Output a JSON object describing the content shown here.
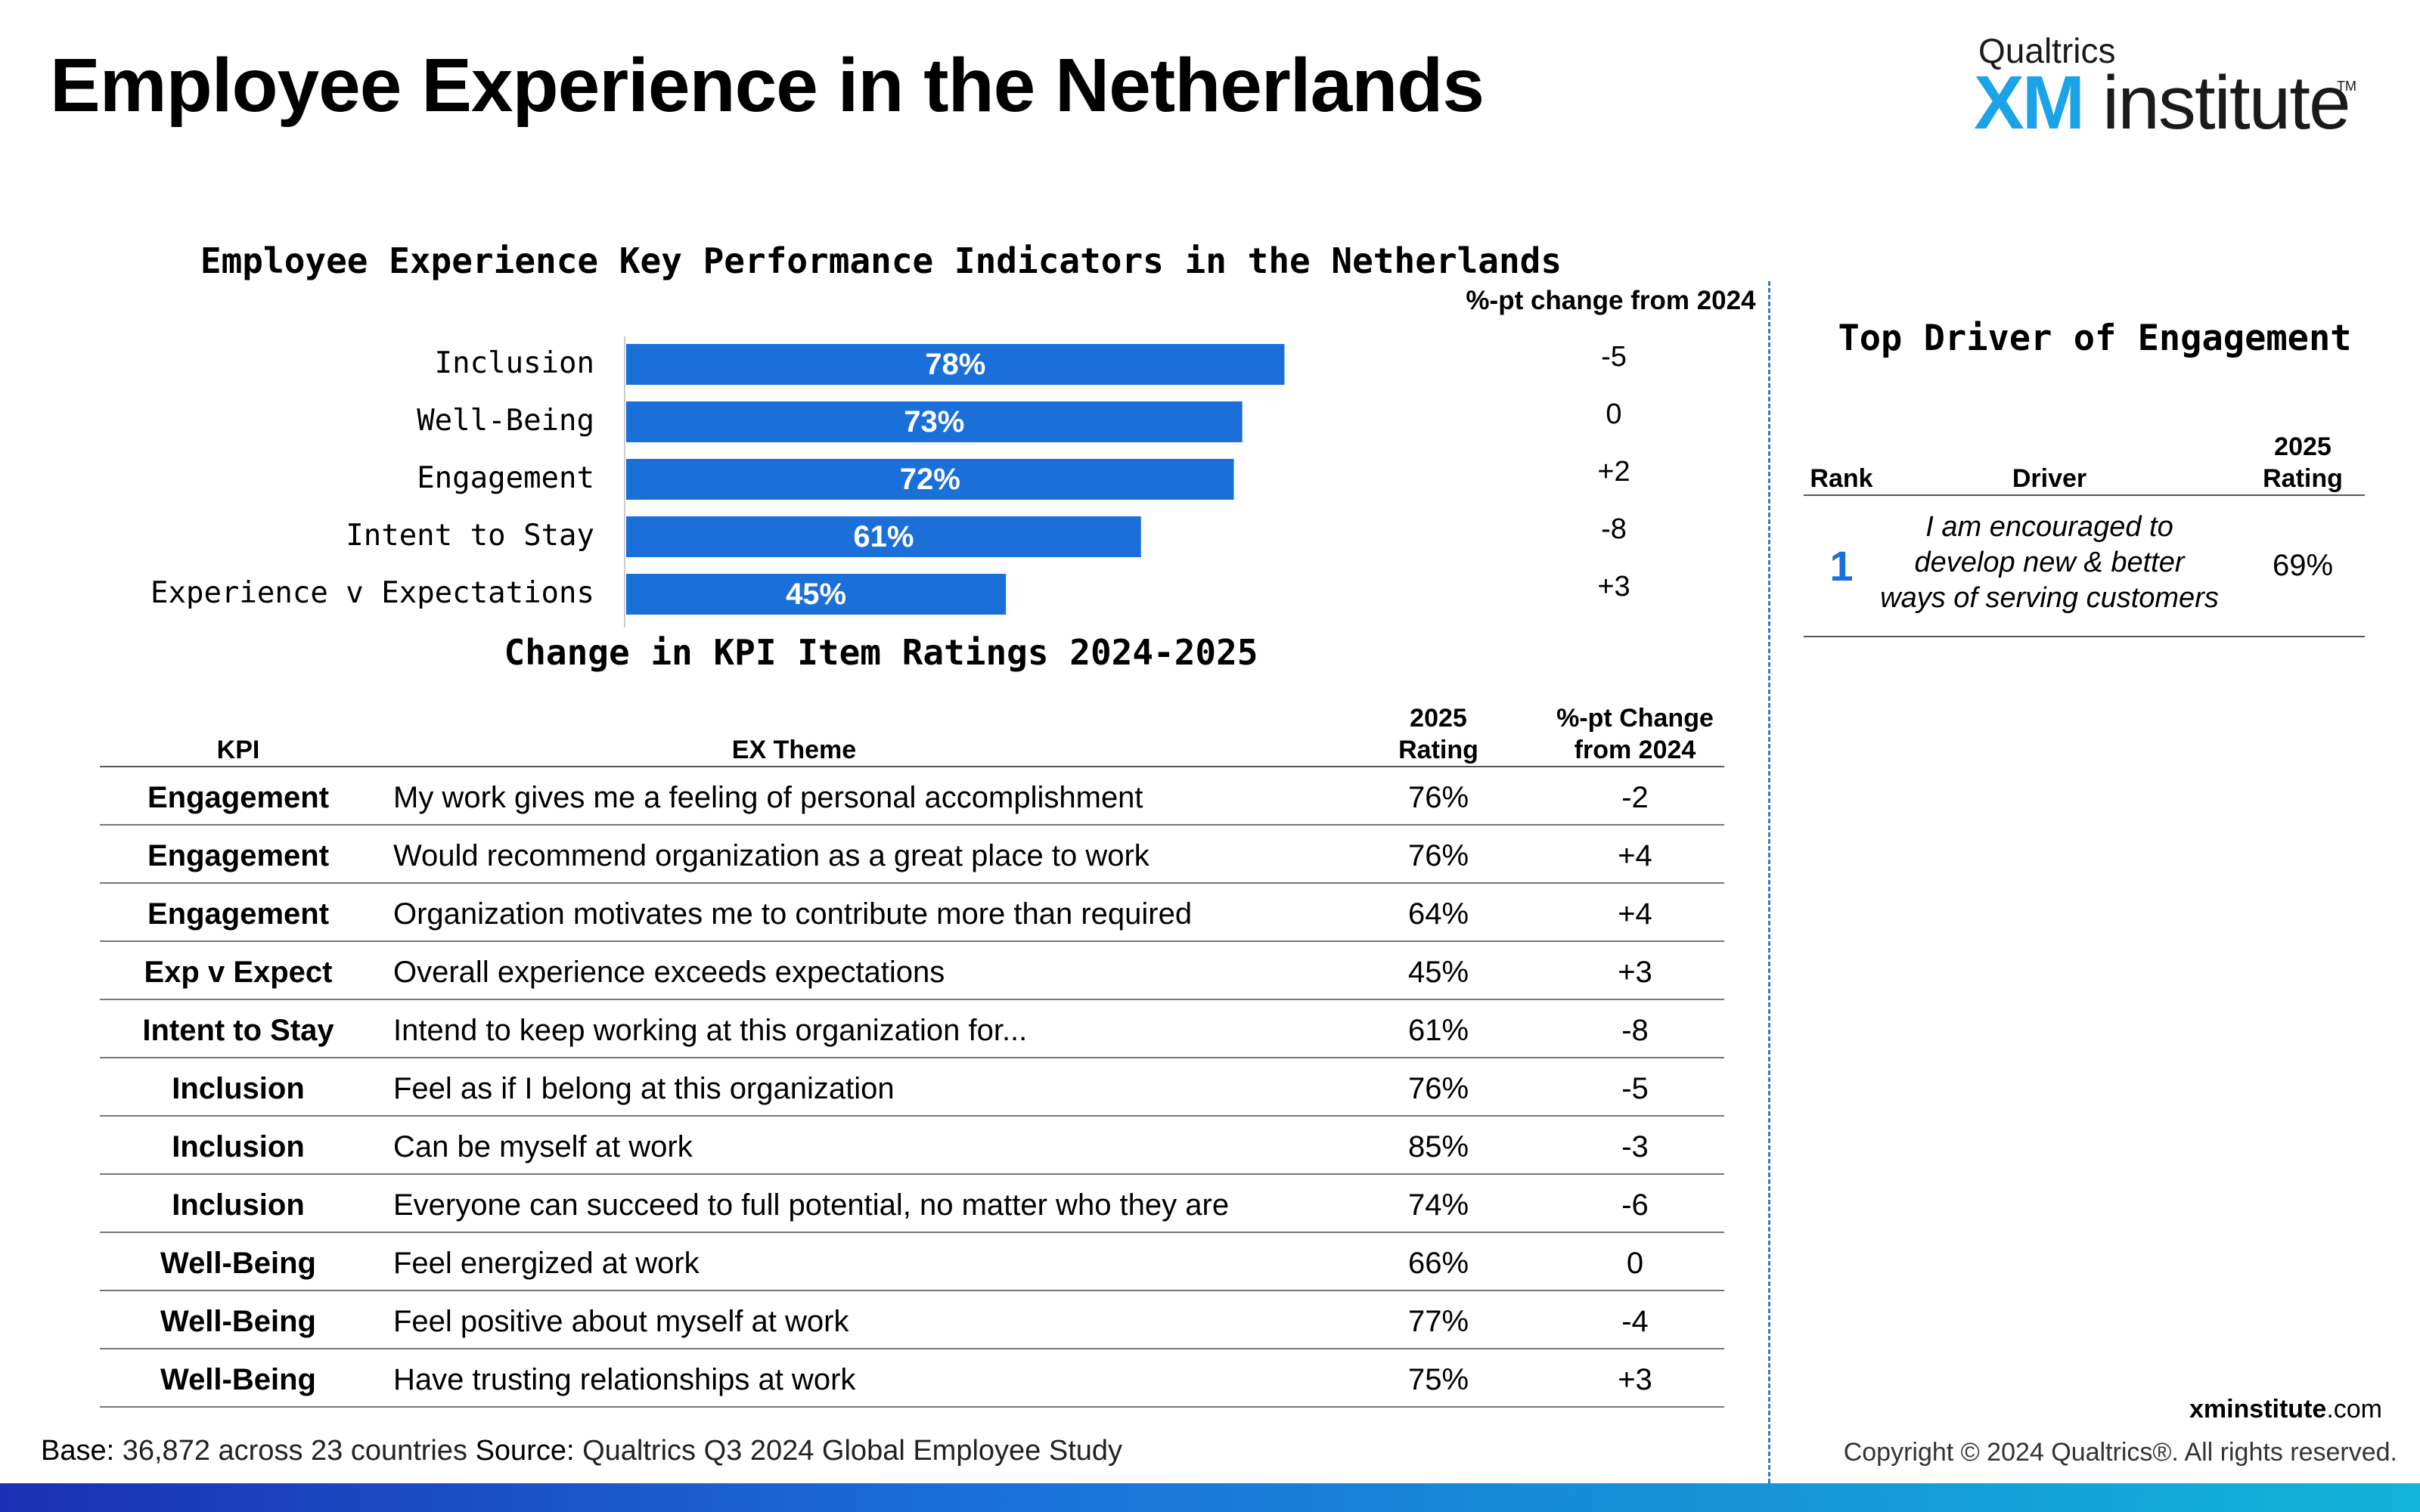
{
  "title": "Employee Experience in the Netherlands",
  "logo": {
    "brand": "Qualtrics",
    "xm": "XM",
    "institute": "institute",
    "tm": "TM"
  },
  "chart_data": {
    "type": "bar",
    "orientation": "horizontal",
    "title": "Employee Experience Key Performance Indicators in the Netherlands",
    "categories": [
      "Inclusion",
      "Well-Being",
      "Engagement",
      "Intent to Stay",
      "Experience v Expectations"
    ],
    "values": [
      78,
      73,
      72,
      61,
      45
    ],
    "value_labels": [
      "78%",
      "73%",
      "72%",
      "61%",
      "45%"
    ],
    "change_header": "%-pt change from 2024",
    "changes": [
      "-5",
      "0",
      "+2",
      "-8",
      "+3"
    ],
    "bar_color": "#1a6fd8",
    "xlim": [
      0,
      100
    ],
    "grid": false
  },
  "table": {
    "title": "Change in KPI Item Ratings 2024-2025",
    "headers": {
      "kpi": "KPI",
      "theme": "EX Theme",
      "rating_1": "2025",
      "rating_2": "Rating",
      "change_1": "%-pt Change",
      "change_2": "from 2024"
    },
    "rows": [
      {
        "kpi": "Engagement",
        "theme": "My work gives me a feeling of personal accomplishment",
        "rating": "76%",
        "change": "-2"
      },
      {
        "kpi": "Engagement",
        "theme": "Would recommend organization as a great place to work",
        "rating": "76%",
        "change": "+4"
      },
      {
        "kpi": "Engagement",
        "theme": "Organization motivates me to contribute more than required",
        "rating": "64%",
        "change": "+4"
      },
      {
        "kpi": "Exp v Expect",
        "theme": "Overall experience exceeds expectations",
        "rating": "45%",
        "change": "+3"
      },
      {
        "kpi": "Intent to Stay",
        "theme": "Intend to keep working at this organization for...",
        "rating": "61%",
        "change": "-8"
      },
      {
        "kpi": "Inclusion",
        "theme": "Feel as if I belong at this organization",
        "rating": "76%",
        "change": "-5"
      },
      {
        "kpi": "Inclusion",
        "theme": "Can be myself at work",
        "rating": "85%",
        "change": "-3"
      },
      {
        "kpi": "Inclusion",
        "theme": "Everyone can succeed to full potential, no matter who they are",
        "rating": "74%",
        "change": "-6"
      },
      {
        "kpi": "Well-Being",
        "theme": "Feel energized at work",
        "rating": "66%",
        "change": "0"
      },
      {
        "kpi": "Well-Being",
        "theme": "Feel positive about myself at work",
        "rating": "77%",
        "change": "-4"
      },
      {
        "kpi": "Well-Being",
        "theme": "Have trusting relationships at work",
        "rating": "75%",
        "change": "+3"
      }
    ]
  },
  "driver": {
    "title": "Top Driver of Engagement",
    "headers": {
      "rank": "Rank",
      "driver": "Driver",
      "rating_1": "2025",
      "rating_2": "Rating"
    },
    "rows": [
      {
        "rank": "1",
        "driver": "I am encouraged to develop new & better ways of serving customers",
        "rating": "69%"
      }
    ]
  },
  "footer": {
    "base_label": "Base:",
    "base_text": "36,872 across 23 countries",
    "source_label": "Source:",
    "source_text": "Qualtrics Q3 2024 Global Employee Study",
    "site_bold": "xminstitute",
    "site_rest": ".com",
    "copyright": "Copyright © 2024 Qualtrics®. All rights reserved."
  }
}
